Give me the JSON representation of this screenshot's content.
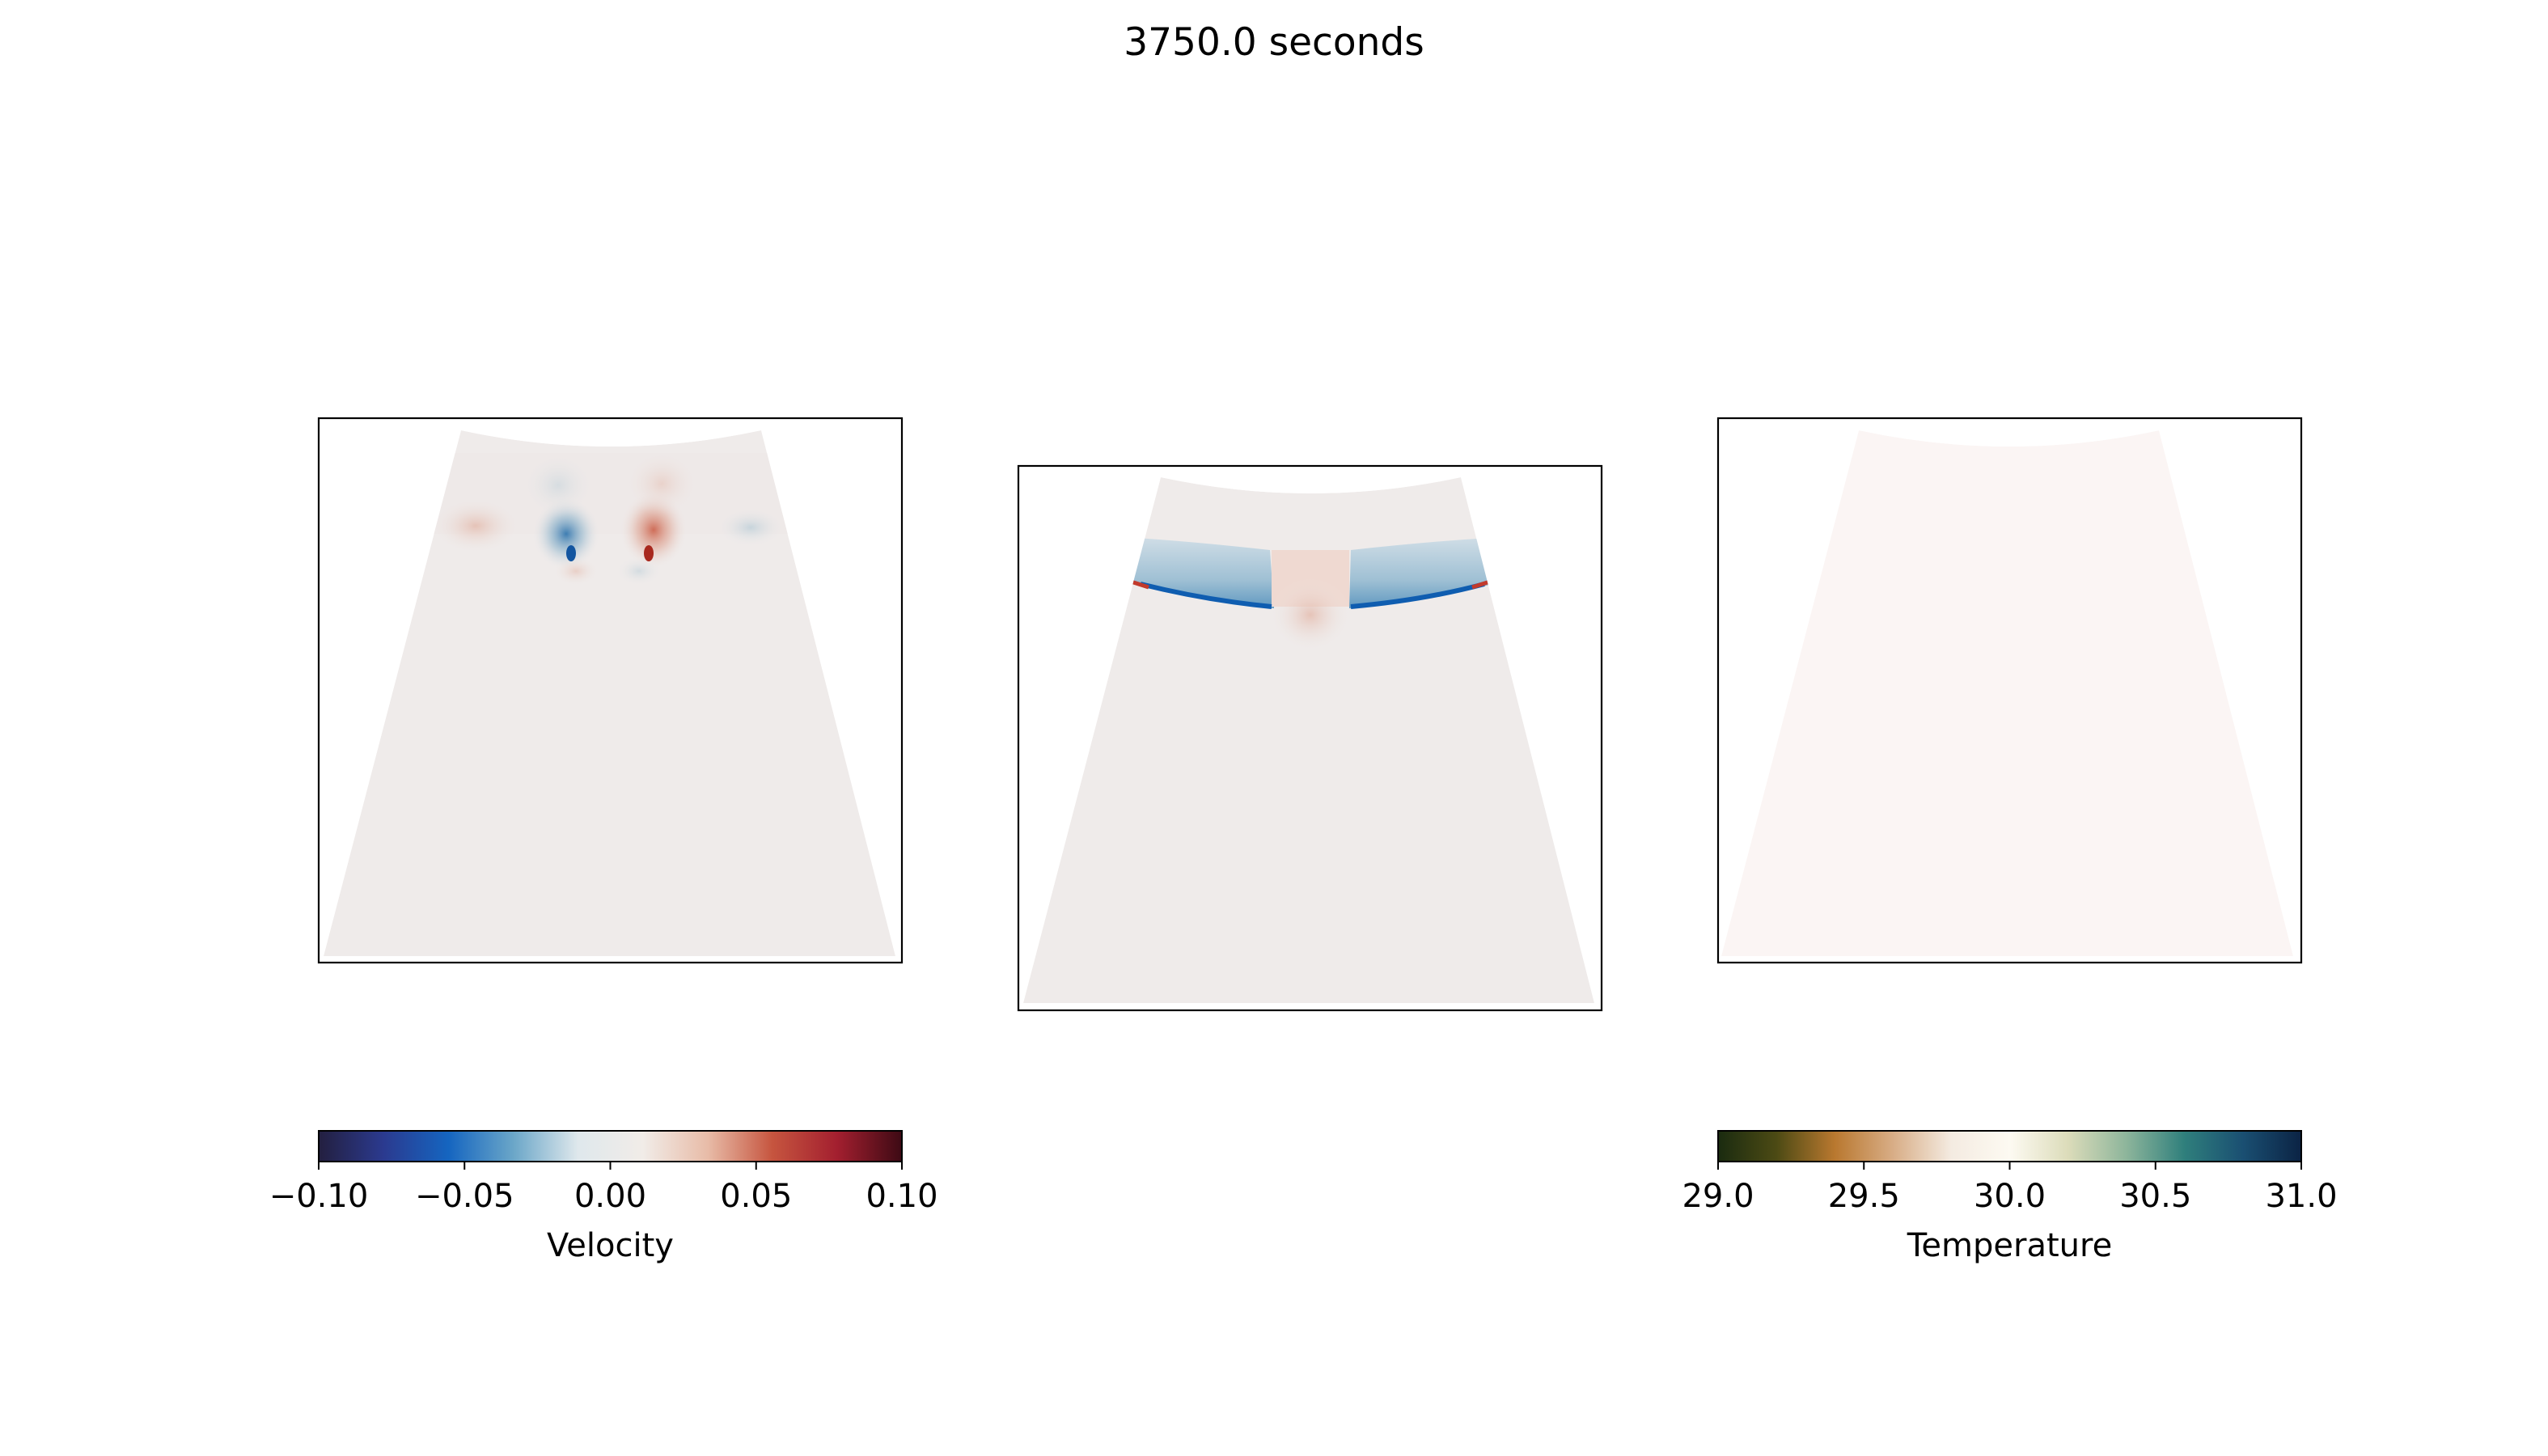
{
  "figure": {
    "title": "3750.0 seconds"
  },
  "colors": {
    "velocity_cmap": [
      "#231f3f",
      "#2b3a8f",
      "#1565c0",
      "#6aa6c8",
      "#dfe8ec",
      "#f1ece8",
      "#e8bca8",
      "#c6553f",
      "#a31f2f",
      "#3d0a14"
    ],
    "temperature_cmap": [
      "#1a2b10",
      "#4c4a14",
      "#b9782f",
      "#d8ad86",
      "#f4ebe1",
      "#fdfaf2",
      "#dcdcba",
      "#8db59b",
      "#2f7f7c",
      "#1a4f72",
      "#0b2344"
    ],
    "background_field": "#efebea",
    "temperature_field": "#fbf5f4"
  },
  "chart_data": [
    {
      "type": "heatmap",
      "panel": "left",
      "title": "",
      "field": "Velocity",
      "colorbar_label": "Velocity",
      "clim": [
        -0.1,
        0.1
      ],
      "ticks": [
        "−0.10",
        "−0.05",
        "0.00",
        "0.05",
        "0.10"
      ],
      "tick_values": [
        -0.1,
        -0.05,
        0.0,
        0.05,
        0.1
      ]
    },
    {
      "type": "heatmap",
      "panel": "middle",
      "title": "",
      "field": "Velocity",
      "clim": [
        -0.1,
        0.1
      ]
    },
    {
      "type": "heatmap",
      "panel": "right",
      "title": "",
      "field": "Temperature",
      "colorbar_label": "Temperature",
      "clim": [
        29.0,
        31.0
      ],
      "ticks": [
        "29.0",
        "29.5",
        "30.0",
        "30.5",
        "31.0"
      ],
      "tick_values": [
        29.0,
        29.5,
        30.0,
        30.5,
        31.0
      ],
      "uniform_value": 30.0
    }
  ]
}
